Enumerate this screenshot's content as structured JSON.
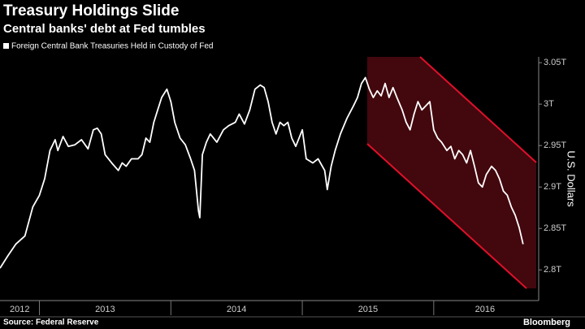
{
  "chart_data": {
    "type": "line",
    "title": "Treasury Holdings Slide",
    "subtitle": "Central banks' debt at Fed tumbles",
    "y_axis_label": "U.S. Dollars",
    "source": "Source: Federal Reserve",
    "brand": "Bloomberg",
    "xlim": [
      2012.7,
      2016.78
    ],
    "xticks": [
      {
        "value": 2012,
        "label": "2012"
      },
      {
        "value": 2013,
        "label": "2013"
      },
      {
        "value": 2014,
        "label": "2014"
      },
      {
        "value": 2015,
        "label": "2015"
      },
      {
        "value": 2016,
        "label": "2016"
      }
    ],
    "ylim": [
      2.763,
      3.057
    ],
    "yticks": [
      {
        "value": 2.8,
        "label": "2.8T"
      },
      {
        "value": 2.85,
        "label": "2.85T"
      },
      {
        "value": 2.9,
        "label": "2.9T"
      },
      {
        "value": 2.95,
        "label": "2.95T"
      },
      {
        "value": 3,
        "label": "3T"
      },
      {
        "value": 3.05,
        "label": "3.05T"
      }
    ],
    "legend_position": "top-left",
    "x": [
      2012.7,
      2012.76,
      2012.82,
      2012.89,
      2012.95,
      2013.0,
      2013.04,
      2013.08,
      2013.12,
      2013.14,
      2013.18,
      2013.22,
      2013.27,
      2013.32,
      2013.37,
      2013.41,
      2013.44,
      2013.47,
      2013.5,
      2013.55,
      2013.6,
      2013.63,
      2013.66,
      2013.7,
      2013.75,
      2013.78,
      2013.81,
      2013.84,
      2013.87,
      2013.9,
      2013.93,
      2013.97,
      2014.0,
      2014.03,
      2014.07,
      2014.11,
      2014.15,
      2014.18,
      2014.21,
      2014.22,
      2014.24,
      2014.27,
      2014.3,
      2014.35,
      2014.4,
      2014.44,
      2014.49,
      2014.52,
      2014.56,
      2014.6,
      2014.64,
      2014.68,
      2014.71,
      2014.74,
      2014.77,
      2014.8,
      2014.83,
      2014.86,
      2014.89,
      2014.92,
      2014.95,
      2015.0,
      2015.03,
      2015.08,
      2015.12,
      2015.17,
      2015.19,
      2015.22,
      2015.25,
      2015.29,
      2015.34,
      2015.39,
      2015.42,
      2015.45,
      2015.48,
      2015.51,
      2015.54,
      2015.57,
      2015.6,
      2015.63,
      2015.66,
      2015.69,
      2015.72,
      2015.76,
      2015.79,
      2015.82,
      2015.85,
      2015.88,
      2015.91,
      2015.94,
      2015.97,
      2016.0,
      2016.03,
      2016.06,
      2016.1,
      2016.13,
      2016.16,
      2016.19,
      2016.22,
      2016.25,
      2016.28,
      2016.31,
      2016.34,
      2016.37,
      2016.4,
      2016.44,
      2016.47,
      2016.5,
      2016.53,
      2016.56,
      2016.59,
      2016.62,
      2016.65,
      2016.68
    ],
    "series": [
      {
        "name": "Foreign Central Bank Treasuries Held in Custody of Fed",
        "color": "#ffffff",
        "values": [
          2.802,
          2.817,
          2.831,
          2.841,
          2.876,
          2.89,
          2.91,
          2.944,
          2.957,
          2.944,
          2.961,
          2.949,
          2.951,
          2.957,
          2.946,
          2.969,
          2.971,
          2.964,
          2.939,
          2.929,
          2.92,
          2.929,
          2.925,
          2.934,
          2.934,
          2.939,
          2.959,
          2.954,
          2.978,
          2.993,
          3.008,
          3.018,
          3.003,
          2.978,
          2.959,
          2.951,
          2.934,
          2.92,
          2.871,
          2.863,
          2.939,
          2.954,
          2.964,
          2.954,
          2.969,
          2.974,
          2.978,
          2.988,
          2.976,
          2.993,
          3.018,
          3.023,
          3.02,
          3.003,
          2.978,
          2.964,
          2.978,
          2.974,
          2.978,
          2.959,
          2.949,
          2.969,
          2.934,
          2.929,
          2.934,
          2.92,
          2.897,
          2.925,
          2.944,
          2.964,
          2.983,
          2.998,
          3.008,
          3.025,
          3.032,
          3.018,
          3.008,
          3.016,
          3.01,
          3.025,
          3.008,
          3.02,
          3.008,
          2.993,
          2.978,
          2.969,
          2.988,
          3.003,
          2.993,
          2.998,
          3.003,
          2.969,
          2.959,
          2.954,
          2.944,
          2.949,
          2.934,
          2.944,
          2.939,
          2.929,
          2.944,
          2.925,
          2.905,
          2.9,
          2.915,
          2.925,
          2.92,
          2.91,
          2.895,
          2.89,
          2.876,
          2.866,
          2.851,
          2.831
        ]
      }
    ]
  }
}
